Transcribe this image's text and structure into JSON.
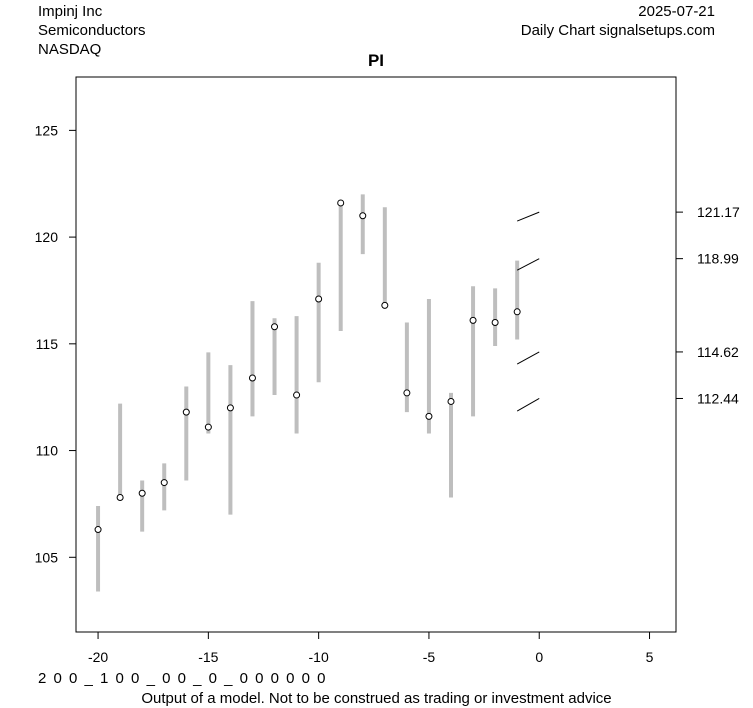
{
  "header": {
    "company": "Impinj Inc",
    "sector": "Semiconductors",
    "exchange": "NASDAQ",
    "date": "2025-07-21",
    "source": "Daily Chart signalsetups.com"
  },
  "footer": {
    "codes": "2 0 0 _ 1 0 0 _ 0 0 _ 0 _ 0 0 0 0 0 0",
    "disclaimer": "Output of a model. Not to be construed as trading or investment advice"
  },
  "chart_data": {
    "type": "range",
    "title": "PI",
    "xlim": [
      -21,
      6.2
    ],
    "ylim": [
      101.5,
      127.5
    ],
    "xticks": [
      -20,
      -15,
      -10,
      -5,
      0,
      5
    ],
    "yticks": [
      105,
      110,
      115,
      120,
      125
    ],
    "right_labels": [
      121.17,
      118.99,
      114.62,
      112.44
    ],
    "colors": {
      "range_bar": "#bebebe",
      "point": "#000000"
    },
    "bars": [
      {
        "x": -20,
        "low": 103.4,
        "high": 107.4,
        "close": 106.3
      },
      {
        "x": -19,
        "low": 107.7,
        "high": 112.2,
        "close": 107.8
      },
      {
        "x": -18,
        "low": 106.2,
        "high": 108.6,
        "close": 108.0
      },
      {
        "x": -17,
        "low": 107.2,
        "high": 109.4,
        "close": 108.5
      },
      {
        "x": -16,
        "low": 108.6,
        "high": 113.0,
        "close": 111.8
      },
      {
        "x": -15,
        "low": 110.8,
        "high": 114.6,
        "close": 111.1
      },
      {
        "x": -14,
        "low": 107.0,
        "high": 114.0,
        "close": 112.0
      },
      {
        "x": -13,
        "low": 111.6,
        "high": 117.0,
        "close": 113.4
      },
      {
        "x": -12,
        "low": 112.6,
        "high": 116.2,
        "close": 115.8
      },
      {
        "x": -11,
        "low": 110.8,
        "high": 116.3,
        "close": 112.6
      },
      {
        "x": -10,
        "low": 113.2,
        "high": 118.8,
        "close": 117.1
      },
      {
        "x": -9,
        "low": 115.6,
        "high": 121.6,
        "close": 121.6
      },
      {
        "x": -8,
        "low": 119.2,
        "high": 122.0,
        "close": 121.0
      },
      {
        "x": -7,
        "low": 116.7,
        "high": 121.4,
        "close": 116.8
      },
      {
        "x": -6,
        "low": 111.8,
        "high": 116.0,
        "close": 112.7
      },
      {
        "x": -5,
        "low": 110.8,
        "high": 117.1,
        "close": 111.6
      },
      {
        "x": -4,
        "low": 107.8,
        "high": 112.7,
        "close": 112.3
      },
      {
        "x": -3,
        "low": 111.6,
        "high": 117.7,
        "close": 116.1
      },
      {
        "x": -2,
        "low": 114.9,
        "high": 117.6,
        "close": 116.0
      },
      {
        "x": -1,
        "low": 115.2,
        "high": 118.9,
        "close": 116.5
      }
    ],
    "projections": [
      {
        "x1": -1,
        "y1": 120.75,
        "x2": 0,
        "y2": 121.17
      },
      {
        "x1": -1,
        "y1": 118.45,
        "x2": 0,
        "y2": 118.99
      },
      {
        "x1": -1,
        "y1": 114.05,
        "x2": 0,
        "y2": 114.62
      },
      {
        "x1": -1,
        "y1": 111.85,
        "x2": 0,
        "y2": 112.44
      }
    ]
  }
}
